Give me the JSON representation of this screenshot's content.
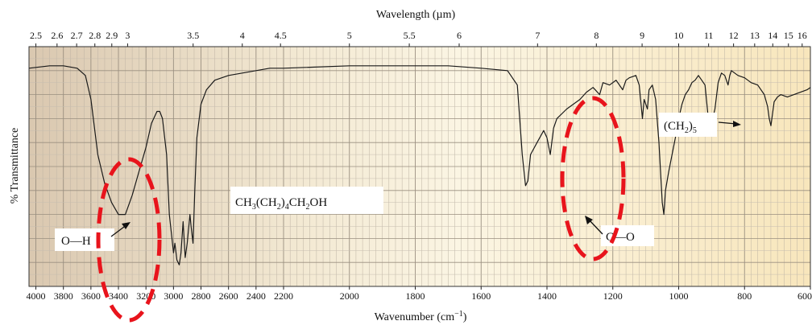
{
  "chart_data": {
    "type": "line",
    "title": "",
    "xlabel": "Wavenumber (cm",
    "xlabel_sup": "−1",
    "xlabel_close": ")",
    "x2label": "Wavelength (µm)",
    "ylabel": "% Transmittance",
    "x_axis_direction": "reversed",
    "xlim": [
      4050,
      600
    ],
    "ylim": [
      0,
      100
    ],
    "grid": true,
    "wavenumber_ticks": [
      {
        "value": 4000,
        "label": "4000"
      },
      {
        "value": 3800,
        "label": "3800"
      },
      {
        "value": 3600,
        "label": "3600"
      },
      {
        "value": 3400,
        "label": "3400"
      },
      {
        "value": 3200,
        "label": "3200"
      },
      {
        "value": 3000,
        "label": "3000"
      },
      {
        "value": 2800,
        "label": "2800"
      },
      {
        "value": 2600,
        "label": "2600"
      },
      {
        "value": 2400,
        "label": "2400"
      },
      {
        "value": 2200,
        "label": "2200"
      },
      {
        "value": 2000,
        "label": "2000"
      },
      {
        "value": 1800,
        "label": "1800"
      },
      {
        "value": 1600,
        "label": "1600"
      },
      {
        "value": 1400,
        "label": "1400"
      },
      {
        "value": 1200,
        "label": "1200"
      },
      {
        "value": 1000,
        "label": "1000"
      },
      {
        "value": 800,
        "label": "800"
      },
      {
        "value": 600,
        "label": "600"
      }
    ],
    "wavelength_ticks": [
      {
        "value": 2.5,
        "label": "2.5"
      },
      {
        "value": 2.6,
        "label": "2.6"
      },
      {
        "value": 2.7,
        "label": "2.7"
      },
      {
        "value": 2.8,
        "label": "2.8"
      },
      {
        "value": 2.9,
        "label": "2.9"
      },
      {
        "value": 3,
        "label": "3"
      },
      {
        "value": 3.5,
        "label": "3.5"
      },
      {
        "value": 4,
        "label": "4"
      },
      {
        "value": 4.5,
        "label": "4.5"
      },
      {
        "value": 5,
        "label": "5"
      },
      {
        "value": 5.5,
        "label": "5.5"
      },
      {
        "value": 6,
        "label": "6"
      },
      {
        "value": 7,
        "label": "7"
      },
      {
        "value": 8,
        "label": "8"
      },
      {
        "value": 9,
        "label": "9"
      },
      {
        "value": 10,
        "label": "10"
      },
      {
        "value": 11,
        "label": "11"
      },
      {
        "value": 12,
        "label": "12"
      },
      {
        "value": 13,
        "label": "13"
      },
      {
        "value": 14,
        "label": "14"
      },
      {
        "value": 15,
        "label": "15"
      },
      {
        "value": 16,
        "label": "16"
      }
    ],
    "series": [
      {
        "color": "#1a1a1a",
        "points": [
          [
            4050,
            91
          ],
          [
            3900,
            92
          ],
          [
            3800,
            92
          ],
          [
            3700,
            91
          ],
          [
            3640,
            88
          ],
          [
            3600,
            78
          ],
          [
            3550,
            55
          ],
          [
            3500,
            43
          ],
          [
            3450,
            35
          ],
          [
            3400,
            30
          ],
          [
            3350,
            30
          ],
          [
            3300,
            38
          ],
          [
            3250,
            48
          ],
          [
            3200,
            58
          ],
          [
            3160,
            68
          ],
          [
            3120,
            73
          ],
          [
            3100,
            73
          ],
          [
            3080,
            70
          ],
          [
            3050,
            55
          ],
          [
            3030,
            30
          ],
          [
            3000,
            14
          ],
          [
            2990,
            18
          ],
          [
            2975,
            11
          ],
          [
            2958,
            9
          ],
          [
            2945,
            14
          ],
          [
            2930,
            27
          ],
          [
            2915,
            12
          ],
          [
            2900,
            18
          ],
          [
            2880,
            30
          ],
          [
            2872,
            25
          ],
          [
            2858,
            18
          ],
          [
            2845,
            40
          ],
          [
            2830,
            62
          ],
          [
            2800,
            76
          ],
          [
            2760,
            82
          ],
          [
            2700,
            86
          ],
          [
            2600,
            88
          ],
          [
            2500,
            89
          ],
          [
            2400,
            90
          ],
          [
            2300,
            91
          ],
          [
            2200,
            91
          ],
          [
            2000,
            92
          ],
          [
            1800,
            92
          ],
          [
            1700,
            92
          ],
          [
            1600,
            91
          ],
          [
            1520,
            90
          ],
          [
            1490,
            84
          ],
          [
            1475,
            55
          ],
          [
            1465,
            42
          ],
          [
            1458,
            44
          ],
          [
            1450,
            55
          ],
          [
            1430,
            60
          ],
          [
            1410,
            65
          ],
          [
            1400,
            62
          ],
          [
            1390,
            55
          ],
          [
            1380,
            66
          ],
          [
            1370,
            70
          ],
          [
            1340,
            74
          ],
          [
            1300,
            78
          ],
          [
            1280,
            81
          ],
          [
            1260,
            83
          ],
          [
            1240,
            80
          ],
          [
            1230,
            85
          ],
          [
            1210,
            84
          ],
          [
            1190,
            86
          ],
          [
            1170,
            82
          ],
          [
            1160,
            86
          ],
          [
            1150,
            87
          ],
          [
            1130,
            88
          ],
          [
            1120,
            84
          ],
          [
            1110,
            70
          ],
          [
            1105,
            78
          ],
          [
            1095,
            74
          ],
          [
            1090,
            82
          ],
          [
            1080,
            84
          ],
          [
            1070,
            78
          ],
          [
            1060,
            60
          ],
          [
            1050,
            35
          ],
          [
            1045,
            30
          ],
          [
            1040,
            40
          ],
          [
            1030,
            48
          ],
          [
            1020,
            55
          ],
          [
            1010,
            62
          ],
          [
            1000,
            70
          ],
          [
            990,
            76
          ],
          [
            980,
            80
          ],
          [
            970,
            82
          ],
          [
            960,
            85
          ],
          [
            950,
            86
          ],
          [
            940,
            88
          ],
          [
            930,
            86
          ],
          [
            920,
            84
          ],
          [
            910,
            70
          ],
          [
            900,
            68
          ],
          [
            890,
            74
          ],
          [
            880,
            85
          ],
          [
            870,
            89
          ],
          [
            860,
            88
          ],
          [
            850,
            84
          ],
          [
            845,
            88
          ],
          [
            840,
            90
          ],
          [
            830,
            89
          ],
          [
            820,
            88
          ],
          [
            800,
            87
          ],
          [
            780,
            85
          ],
          [
            760,
            84
          ],
          [
            740,
            80
          ],
          [
            730,
            75
          ],
          [
            725,
            70
          ],
          [
            720,
            67
          ],
          [
            715,
            72
          ],
          [
            710,
            77
          ],
          [
            700,
            79
          ],
          [
            690,
            80
          ],
          [
            670,
            79
          ],
          [
            650,
            80
          ],
          [
            630,
            81
          ],
          [
            610,
            82
          ],
          [
            600,
            83
          ]
        ]
      }
    ],
    "annotations": {
      "formula_1": "CH",
      "formula_2": "3",
      "formula_3": "(CH",
      "formula_4": "2",
      "formula_5": ")",
      "formula_6": "4",
      "formula_7": "CH",
      "formula_8": "2",
      "formula_9": "OH",
      "oh_label": "O—H",
      "co_label": "C—O",
      "ch2_1": "(CH",
      "ch2_2": "2",
      "ch2_3": ")",
      "ch2_4": "5"
    },
    "highlight_color": "#e8141c"
  }
}
